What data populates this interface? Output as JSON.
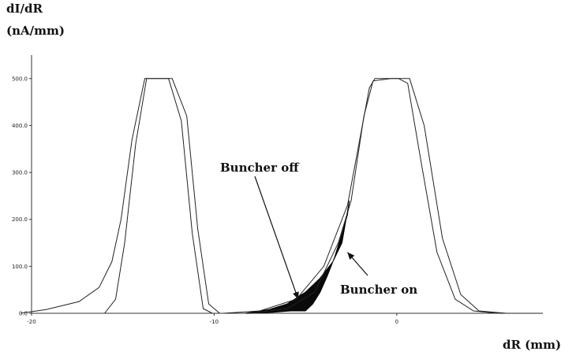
{
  "chart_data": {
    "type": "line",
    "ylabel_line1": "dI/dR",
    "ylabel_line2": "(nA/mm)",
    "xlabel": "dR (mm)",
    "xlim": [
      -20,
      8
    ],
    "ylim": [
      0,
      550
    ],
    "x_tick_labels": [
      "-20",
      "-10",
      "0"
    ],
    "x_ticks": [
      -20,
      -10,
      0
    ],
    "y_tick_labels": [
      "0.0",
      "100.0",
      "200.0",
      "300.0",
      "400.0",
      "500.0"
    ],
    "y_ticks": [
      0,
      100,
      200,
      300,
      400,
      500
    ],
    "grid": false,
    "annotations": [
      {
        "text": "Buncher off",
        "arrow_to": [
          -5.4,
          30
        ]
      },
      {
        "text": "Buncher on",
        "arrow_to": [
          -2.7,
          130
        ]
      }
    ],
    "peak_left_outer": {
      "x": [
        -20.6,
        -19.2,
        -17.4,
        -16.3,
        -15.6,
        -15.1,
        -14.5,
        -13.8,
        -13.0,
        -12.3,
        -11.5,
        -10.9,
        -10.3,
        -9.7
      ],
      "y": [
        0,
        8,
        25,
        55,
        110,
        200,
        370,
        500,
        500,
        500,
        420,
        180,
        20,
        0
      ]
    },
    "peak_left_inner": {
      "x": [
        -16.0,
        -15.4,
        -14.9,
        -14.3,
        -13.7,
        -12.5,
        -11.8,
        -11.2,
        -10.6,
        -10.1
      ],
      "y": [
        0,
        30,
        150,
        360,
        500,
        500,
        410,
        170,
        10,
        0
      ]
    },
    "peak_right_outer": {
      "x": [
        -9.5,
        -7.5,
        -5.5,
        -4.0,
        -2.7,
        -1.5,
        -1.2,
        0.3,
        0.7,
        1.5,
        2.5,
        3.5,
        4.5,
        6.0,
        8.0
      ],
      "y": [
        0,
        5,
        30,
        100,
        230,
        480,
        500,
        500,
        500,
        400,
        160,
        40,
        5,
        0,
        0
      ]
    },
    "peak_right_inner": {
      "x": [
        -8.0,
        -6.0,
        -4.5,
        -3.2,
        -2.5,
        -1.8,
        -1.3,
        -0.3,
        0.1,
        0.6,
        1.3,
        2.2,
        3.2,
        4.2,
        5.5
      ],
      "y": [
        0,
        10,
        45,
        150,
        240,
        420,
        495,
        500,
        500,
        490,
        330,
        130,
        30,
        5,
        0
      ]
    },
    "filled_region": {
      "x": [
        -8.3,
        -7.0,
        -6.0,
        -5.0,
        -4.2,
        -3.5,
        -3.0,
        -2.6,
        -2.7,
        -3.0,
        -3.4,
        -3.8,
        -4.2,
        -4.6,
        -5.0,
        -5.8,
        -6.8,
        -8.3
      ],
      "y": [
        0,
        8,
        20,
        45,
        75,
        110,
        150,
        240,
        210,
        170,
        120,
        80,
        45,
        20,
        5,
        5,
        2,
        0
      ]
    }
  }
}
